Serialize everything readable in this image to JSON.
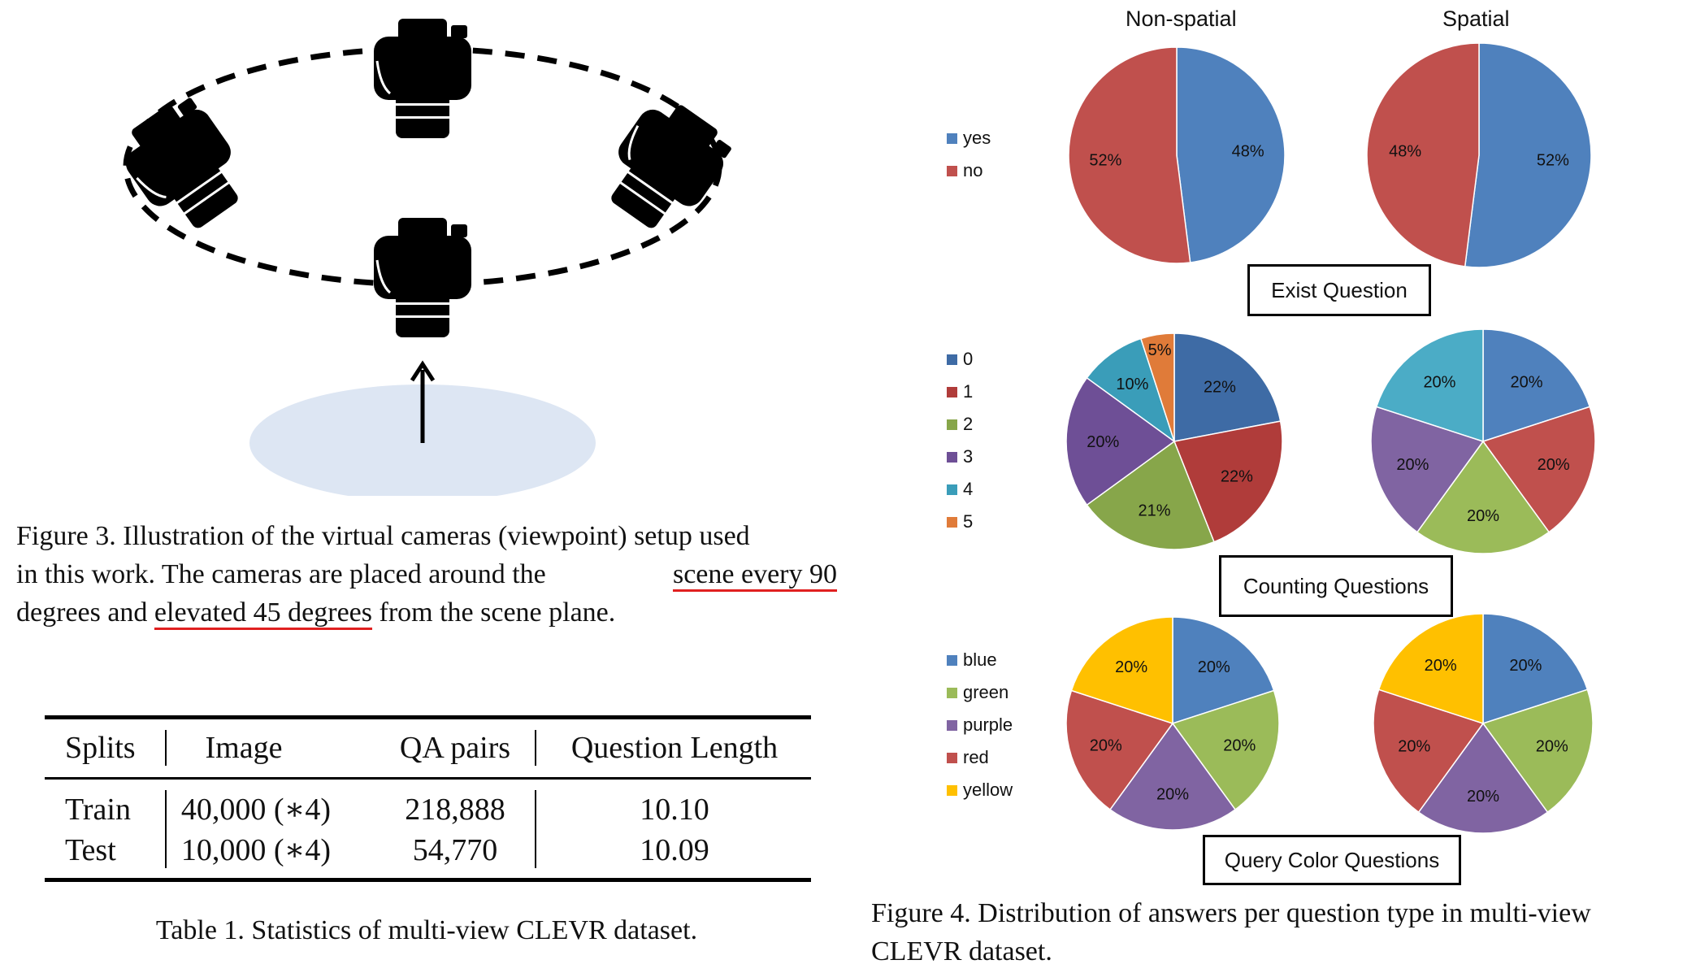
{
  "figure3": {
    "caption_lines": [
      "Figure 3. Illustration of the virtual cameras (viewpoint) setup used",
      "in this work.  The cameras are placed around the",
      "scene every 90",
      "degrees and",
      "elevated 45 degrees",
      "from the scene plane."
    ],
    "colors": {
      "camera": "#000000",
      "plane": "#dde6f3",
      "underline": "#e02020"
    },
    "icons": [
      "camera-icon",
      "up-arrow-icon"
    ]
  },
  "table1": {
    "headers": [
      "Splits",
      "Image",
      "QA pairs",
      "Question Length"
    ],
    "rows": [
      [
        "Train",
        "40,000 (∗4)",
        "218,888",
        "10.10"
      ],
      [
        "Test",
        "10,000 (∗4)",
        "54,770",
        "10.09"
      ]
    ],
    "caption": "Table 1. Statistics of multi-view CLEVR dataset."
  },
  "figure4": {
    "column_headers": [
      "Non-spatial",
      "Spatial"
    ],
    "caption_lines": [
      "Figure 4. Distribution of answers per question type in multi-view",
      "CLEVR dataset."
    ],
    "groups": [
      {
        "label": "Exist Question",
        "legend": [
          "yes",
          "no"
        ]
      },
      {
        "label": "Counting Questions",
        "legend": [
          "0",
          "1",
          "2",
          "3",
          "4",
          "5"
        ]
      },
      {
        "label": "Query Color Questions",
        "legend": [
          "blue",
          "green",
          "purple",
          "red",
          "yellow"
        ]
      }
    ]
  },
  "chart_data": [
    {
      "type": "pie",
      "title": "Non-spatial",
      "group": "Exist Question",
      "labels": [
        "yes",
        "no"
      ],
      "values": [
        48,
        52
      ],
      "display_labels": [
        "48%",
        "52%"
      ],
      "colors": [
        "#4f81bd",
        "#c0504d"
      ]
    },
    {
      "type": "pie",
      "title": "Spatial",
      "group": "Exist Question",
      "labels": [
        "yes",
        "no"
      ],
      "values": [
        52,
        48
      ],
      "display_labels": [
        "52%",
        "48%"
      ],
      "colors": [
        "#4f81bd",
        "#c0504d"
      ]
    },
    {
      "type": "pie",
      "title": "Non-spatial",
      "group": "Counting Questions",
      "labels": [
        "0",
        "1",
        "2",
        "3",
        "4",
        "5"
      ],
      "values": [
        22,
        22,
        21,
        20,
        10,
        5
      ],
      "display_labels": [
        "22%",
        "22%",
        "21%",
        "20%",
        "10%",
        "5%"
      ],
      "colors": [
        "#3e6ba5",
        "#b03c3a",
        "#87a64a",
        "#6e4f96",
        "#3a9db9",
        "#e07b39"
      ]
    },
    {
      "type": "pie",
      "title": "Spatial",
      "group": "Counting Questions",
      "labels": [
        "0",
        "1",
        "2",
        "3",
        "4"
      ],
      "values": [
        20,
        20,
        20,
        20,
        20
      ],
      "display_labels": [
        "20%",
        "20%",
        "20%",
        "20%",
        "20%"
      ],
      "colors": [
        "#4f81bd",
        "#c0504d",
        "#9bbb59",
        "#8064a2",
        "#4bacc6"
      ]
    },
    {
      "type": "pie",
      "title": "Non-spatial",
      "group": "Query Color Questions",
      "labels": [
        "blue",
        "green",
        "purple",
        "red",
        "yellow"
      ],
      "values": [
        20,
        20,
        20,
        20,
        20
      ],
      "display_labels": [
        "20%",
        "20%",
        "20%",
        "20%",
        "20%"
      ],
      "colors": [
        "#4f81bd",
        "#9bbb59",
        "#8064a2",
        "#c0504d",
        "#ffc000"
      ]
    },
    {
      "type": "pie",
      "title": "Spatial",
      "group": "Query Color Questions",
      "labels": [
        "blue",
        "green",
        "purple",
        "red",
        "yellow"
      ],
      "values": [
        20,
        20,
        20,
        20,
        20
      ],
      "display_labels": [
        "20%",
        "20%",
        "20%",
        "20%",
        "20%"
      ],
      "colors": [
        "#4f81bd",
        "#9bbb59",
        "#8064a2",
        "#c0504d",
        "#ffc000"
      ]
    }
  ]
}
